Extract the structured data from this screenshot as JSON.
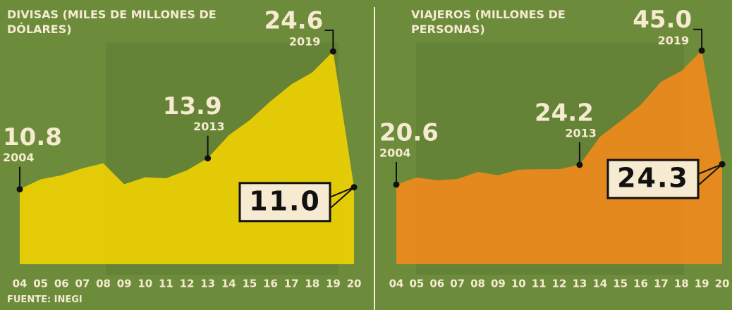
{
  "source": "FUENTE: INEGI",
  "chart_data": [
    {
      "type": "area",
      "title": "DIVISAS (MILES DE MILLONES DE DÓLARES)",
      "x": [
        2004,
        2005,
        2006,
        2007,
        2008,
        2009,
        2010,
        2011,
        2012,
        2013,
        2014,
        2015,
        2016,
        2017,
        2018,
        2019,
        2020
      ],
      "xlim": [
        2004,
        2020
      ],
      "xticks": [
        {
          "value": 2004,
          "label": "04"
        },
        {
          "value": 2005,
          "label": "05"
        },
        {
          "value": 2006,
          "label": "06"
        },
        {
          "value": 2007,
          "label": "07"
        },
        {
          "value": 2008,
          "label": "08"
        },
        {
          "value": 2009,
          "label": "09"
        },
        {
          "value": 2010,
          "label": "10"
        },
        {
          "value": 2011,
          "label": "11"
        },
        {
          "value": 2012,
          "label": "12"
        },
        {
          "value": 2013,
          "label": "13"
        },
        {
          "value": 2014,
          "label": "14"
        },
        {
          "value": 2015,
          "label": "15"
        },
        {
          "value": 2016,
          "label": "16"
        },
        {
          "value": 2017,
          "label": "17"
        },
        {
          "value": 2018,
          "label": "18"
        },
        {
          "value": 2019,
          "label": "19"
        },
        {
          "value": 2020,
          "label": "20"
        }
      ],
      "values": [
        10.8,
        11.8,
        12.2,
        12.9,
        13.4,
        11.3,
        12.0,
        11.9,
        12.7,
        13.9,
        16.2,
        17.7,
        19.6,
        21.3,
        22.5,
        24.6,
        11.0
      ],
      "value_labels": [
        "10.8",
        null,
        null,
        null,
        null,
        null,
        null,
        null,
        null,
        "13.9",
        null,
        null,
        null,
        null,
        null,
        "24.6",
        "11.0"
      ],
      "ylim": [
        3.3,
        26.5
      ],
      "color": "#f5d400"
    },
    {
      "type": "area",
      "title": "VIAJEROS (MILLONES DE PERSONAS)",
      "x": [
        2004,
        2005,
        2006,
        2007,
        2008,
        2009,
        2010,
        2011,
        2012,
        2013,
        2014,
        2015,
        2016,
        2017,
        2018,
        2019,
        2020
      ],
      "xlim": [
        2004,
        2020
      ],
      "xticks": [
        {
          "value": 2004,
          "label": "04"
        },
        {
          "value": 2005,
          "label": "05"
        },
        {
          "value": 2006,
          "label": "06"
        },
        {
          "value": 2007,
          "label": "07"
        },
        {
          "value": 2008,
          "label": "08"
        },
        {
          "value": 2009,
          "label": "09"
        },
        {
          "value": 2010,
          "label": "10"
        },
        {
          "value": 2011,
          "label": "11"
        },
        {
          "value": 2012,
          "label": "12"
        },
        {
          "value": 2013,
          "label": "13"
        },
        {
          "value": 2014,
          "label": "14"
        },
        {
          "value": 2015,
          "label": "15"
        },
        {
          "value": 2016,
          "label": "16"
        },
        {
          "value": 2017,
          "label": "17"
        },
        {
          "value": 2018,
          "label": "18"
        },
        {
          "value": 2019,
          "label": "19"
        },
        {
          "value": 2020,
          "label": "20"
        }
      ],
      "values": [
        20.6,
        21.9,
        21.4,
        21.6,
        22.9,
        22.3,
        23.3,
        23.4,
        23.4,
        24.2,
        29.3,
        32.1,
        35.1,
        39.3,
        41.3,
        45.0,
        24.3
      ],
      "value_labels": [
        "20.6",
        null,
        null,
        null,
        null,
        null,
        null,
        null,
        null,
        "24.2",
        null,
        null,
        null,
        null,
        null,
        "45.0",
        "24.3"
      ],
      "ylim": [
        6.1,
        48.3
      ],
      "color": "#f58a1a"
    }
  ]
}
